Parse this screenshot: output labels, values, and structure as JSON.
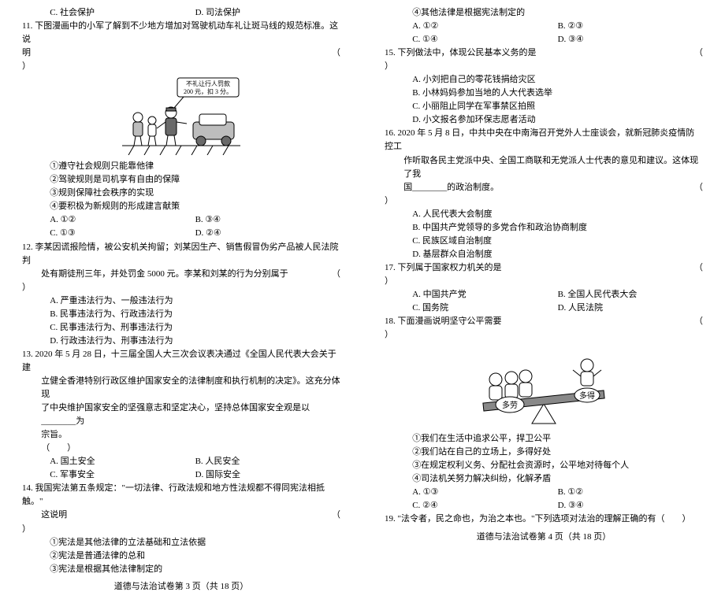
{
  "pages": [
    {
      "footer": "道德与法治试卷第 3 页（共 18 页）",
      "blocks": [
        {
          "type": "options2",
          "indent": "indent2",
          "a": "C. 社会保护",
          "b": "D. 司法保护"
        },
        {
          "type": "qstart",
          "num": "11.",
          "text": "下图漫画中的小军了解到不少地方增加对驾驶机动车礼让斑马线的规范标准。这说"
        },
        {
          "type": "qrow",
          "text": "明",
          "paren": "（"
        },
        {
          "type": "paren-close"
        },
        {
          "type": "figure1"
        },
        {
          "type": "line",
          "indent": "indent2",
          "text": "①遵守社会规则只能靠他律"
        },
        {
          "type": "line",
          "indent": "indent2",
          "text": "②驾驶规则是司机享有自由的保障"
        },
        {
          "type": "line",
          "indent": "indent2",
          "text": "③规则保障社会秩序的实现"
        },
        {
          "type": "line",
          "indent": "indent2",
          "text": "④要积极为新规则的形成建言献策"
        },
        {
          "type": "options2",
          "indent": "indent2",
          "a": "A. ①②",
          "b": "B. ③④"
        },
        {
          "type": "options2",
          "indent": "indent2",
          "a": "C. ①③",
          "b": "D. ②④"
        },
        {
          "type": "qstart",
          "num": "12.",
          "text": "李某因谎报险情，被公安机关拘留；刘某因生产、销售假冒伪劣产品被人民法院判"
        },
        {
          "type": "qrow",
          "indent": "indent1",
          "text": "处有期徒刑三年，并处罚金 5000 元。李某和刘某的行为分别属于",
          "paren": "（"
        },
        {
          "type": "paren-close"
        },
        {
          "type": "line",
          "indent": "indent2",
          "text": "A. 严重违法行为、一般违法行为"
        },
        {
          "type": "line",
          "indent": "indent2",
          "text": "B. 民事违法行为、行政违法行为"
        },
        {
          "type": "line",
          "indent": "indent2",
          "text": "C. 民事违法行为、刑事违法行为"
        },
        {
          "type": "line",
          "indent": "indent2",
          "text": "D. 行政违法行为、刑事违法行为"
        },
        {
          "type": "qstart",
          "num": "13.",
          "text": "2020 年 5 月 28 日，十三届全国人大三次会议表决通过《全国人民代表大会关于建"
        },
        {
          "type": "line",
          "indent": "indent1",
          "text": "立健全香港特别行政区维护国家安全的法律制度和执行机制的决定》。这充分体现"
        },
        {
          "type": "line",
          "indent": "indent1",
          "text": "了中央维护国家安全的坚强意志和坚定决心，坚持总体国家安全观是以________为"
        },
        {
          "type": "line",
          "indent": "indent1",
          "text": "宗旨。"
        },
        {
          "type": "line",
          "indent": "indent1",
          "text": "（　　）"
        },
        {
          "type": "options2",
          "indent": "indent2",
          "a": "A. 国土安全",
          "b": "B. 人民安全"
        },
        {
          "type": "options2",
          "indent": "indent2",
          "a": "C. 军事安全",
          "b": "D. 国际安全"
        },
        {
          "type": "qstart",
          "num": "14.",
          "text": "我国宪法第五条规定：\"一切法律、行政法规和地方性法规都不得同宪法相抵触。\""
        },
        {
          "type": "qrow",
          "indent": "indent1",
          "text": "这说明",
          "paren": "（"
        },
        {
          "type": "paren-close"
        },
        {
          "type": "line",
          "indent": "indent2",
          "text": "①宪法是其他法律的立法基础和立法依据"
        },
        {
          "type": "line",
          "indent": "indent2",
          "text": "②宪法是普通法律的总和"
        },
        {
          "type": "line",
          "indent": "indent2",
          "text": "③宪法是根据其他法律制定的"
        }
      ]
    },
    {
      "footer": "道德与法治试卷第 4 页（共 18 页）",
      "blocks": [
        {
          "type": "line",
          "indent": "indent2",
          "text": "④其他法律是根据宪法制定的"
        },
        {
          "type": "options2",
          "indent": "indent2",
          "a": "A. ①②",
          "b": "B. ②③"
        },
        {
          "type": "options2",
          "indent": "indent2",
          "a": "C. ①④",
          "b": "D. ③④"
        },
        {
          "type": "qrow-num",
          "num": "15.",
          "text": "下列做法中，体现公民基本义务的是",
          "paren": "（"
        },
        {
          "type": "paren-close"
        },
        {
          "type": "line",
          "indent": "indent2",
          "text": "A. 小刘把自己的零花钱捐给灾区"
        },
        {
          "type": "line",
          "indent": "indent2",
          "text": "B. 小林妈妈参加当地的人大代表选举"
        },
        {
          "type": "line",
          "indent": "indent2",
          "text": "C. 小丽阻止同学在军事禁区拍照"
        },
        {
          "type": "line",
          "indent": "indent2",
          "text": "D. 小文报名参加环保志愿者活动"
        },
        {
          "type": "qstart",
          "num": "16.",
          "text": "2020 年 5 月 8 日，中共中央在中南海召开党外人士座谈会，就新冠肺炎疫情防控工"
        },
        {
          "type": "line",
          "indent": "indent1",
          "text": "作听取各民主党派中央、全国工商联和无党派人士代表的意见和建议。这体现了我"
        },
        {
          "type": "qrow",
          "indent": "indent1",
          "text": "国________的政治制度。",
          "paren": "（"
        },
        {
          "type": "paren-close"
        },
        {
          "type": "line",
          "indent": "indent2",
          "text": "A. 人民代表大会制度"
        },
        {
          "type": "line",
          "indent": "indent2",
          "text": "B. 中国共产党领导的多党合作和政治协商制度"
        },
        {
          "type": "line",
          "indent": "indent2",
          "text": "C. 民族区域自治制度"
        },
        {
          "type": "line",
          "indent": "indent2",
          "text": "D. 基层群众自治制度"
        },
        {
          "type": "qrow-num",
          "num": "17.",
          "text": "下列属于国家权力机关的是",
          "paren": "（"
        },
        {
          "type": "paren-close"
        },
        {
          "type": "options2",
          "indent": "indent2",
          "a": "A. 中国共产党",
          "b": "B. 全国人民代表大会"
        },
        {
          "type": "options2",
          "indent": "indent2",
          "a": "C. 国务院",
          "b": "D. 人民法院"
        },
        {
          "type": "qrow-num",
          "num": "18.",
          "text": "下面漫画说明坚守公平需要",
          "paren": "（"
        },
        {
          "type": "paren-close"
        },
        {
          "type": "figure2"
        },
        {
          "type": "line",
          "indent": "indent2",
          "text": "①我们在生活中追求公平，捍卫公平"
        },
        {
          "type": "line",
          "indent": "indent2",
          "text": "②我们站在自己的立场上，多得好处"
        },
        {
          "type": "line",
          "indent": "indent2",
          "text": "③在规定权利义务、分配社会资源时，公平地对待每个人"
        },
        {
          "type": "line",
          "indent": "indent2",
          "text": "④司法机关努力解决纠纷，化解矛盾"
        },
        {
          "type": "options2",
          "indent": "indent2",
          "a": "A. ①③",
          "b": "B. ①②"
        },
        {
          "type": "options2",
          "indent": "indent2",
          "a": "C. ②④",
          "b": "D. ③④"
        },
        {
          "type": "qrow-num-full",
          "num": "19.",
          "text": "\"法令者，民之命也，为治之本也。\"下列选项对法治的理解正确的有（　　）"
        }
      ]
    }
  ],
  "figure1": {
    "caption1": "不礼让行人罚款",
    "caption2": "200 元，扣 3 分。",
    "colors": {
      "line": "#000000",
      "fill_gray": "#6a6a6a",
      "fill_light": "#bdbdbd"
    }
  },
  "figure2": {
    "left_label": "多劳",
    "right_label": "多得",
    "colors": {
      "line": "#000000",
      "fill_gray": "#888888"
    }
  }
}
